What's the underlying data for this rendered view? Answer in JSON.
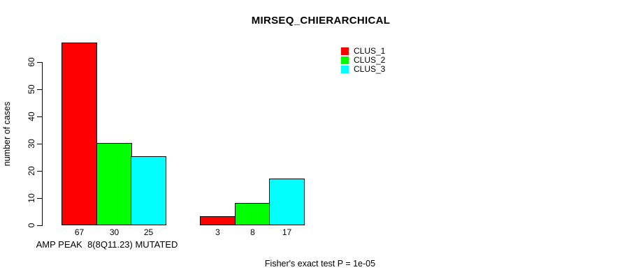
{
  "chart_data": {
    "type": "bar",
    "title": "MIRSEQ_CHIERARCHICAL",
    "ylabel": "number of cases",
    "xlabel": "AMP PEAK  8(8Q11.23) MUTATED",
    "annotation": "Fisher's exact test P = 1e-05",
    "yticks": [
      0,
      10,
      20,
      30,
      40,
      50,
      60
    ],
    "ylim": [
      0,
      67
    ],
    "grid": false,
    "legend_position": "top-right",
    "series_names": [
      "CLUS_1",
      "CLUS_2",
      "CLUS_3"
    ],
    "colors": [
      "#ff0000",
      "#00ff00",
      "#00ffff"
    ],
    "groups": [
      {
        "label": "AMP PEAK  8(8Q11.23) MUTATED",
        "values": [
          67,
          30,
          25
        ],
        "bar_labels": [
          "67",
          "30",
          "25"
        ]
      },
      {
        "label": "",
        "values": [
          3,
          8,
          17
        ],
        "bar_labels": [
          "3",
          "8",
          "17"
        ]
      }
    ]
  }
}
